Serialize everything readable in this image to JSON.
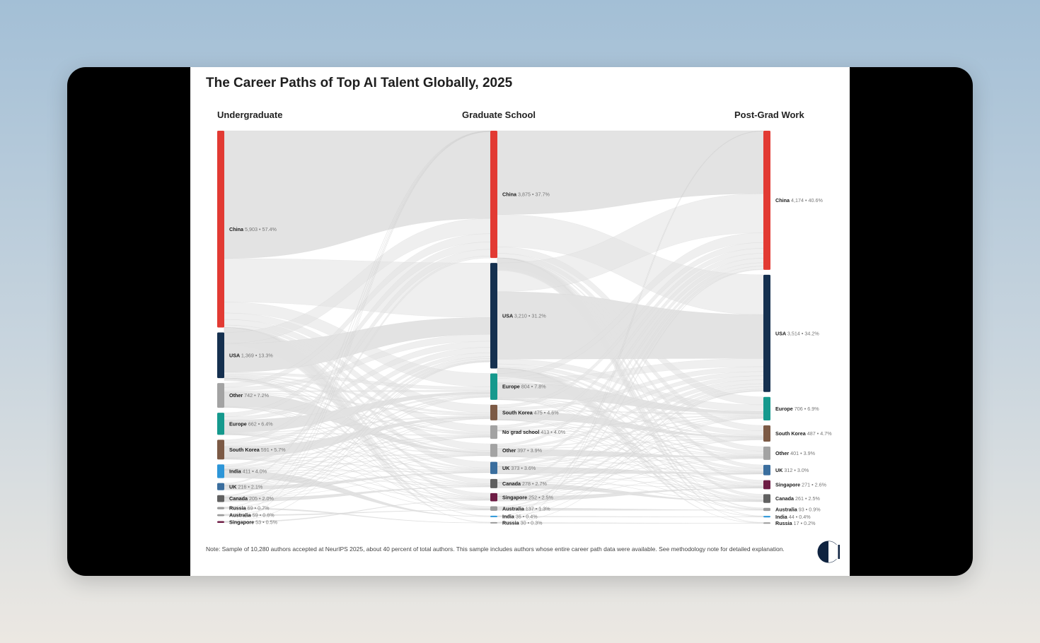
{
  "title": "The Career Paths of Top AI Talent Globally, 2025",
  "columns": [
    "Undergraduate",
    "Graduate School",
    "Post-Grad Work"
  ],
  "note": "Note: Sample of 10,280 authors accepted at NeurIPS 2025, about 40 percent of total authors. This sample includes authors whose entire career path data were available. See methodology note for detailed explanation.",
  "logo_icon": "organization-logo-icon",
  "colors": {
    "China": "#e23a33",
    "USA": "#15304f",
    "Other": "#a3a3a3",
    "Europe": "#15998d",
    "South Korea": "#7c5a45",
    "India": "#2d96d8",
    "UK": "#3a6e9e",
    "Canada": "#606060",
    "Russia": "#9a9a9a",
    "Australia": "#9a9a9a",
    "Singapore": "#6e1d45",
    "No grad school": "#a3a3a3",
    "flow": "#e2e2e2"
  },
  "chart_data": {
    "type": "sankey",
    "title": "The Career Paths of Top AI Talent Globally, 2025",
    "stages": [
      {
        "name": "Undergraduate",
        "nodes": [
          {
            "label": "China",
            "value": "5,903",
            "pct": "57.4%",
            "n": 5903
          },
          {
            "label": "USA",
            "value": "1,369",
            "pct": "13.3%",
            "n": 1369
          },
          {
            "label": "Other",
            "value": "742",
            "pct": "7.2%",
            "n": 742
          },
          {
            "label": "Europe",
            "value": "662",
            "pct": "6.4%",
            "n": 662
          },
          {
            "label": "South Korea",
            "value": "591",
            "pct": "5.7%",
            "n": 591
          },
          {
            "label": "India",
            "value": "411",
            "pct": "4.0%",
            "n": 411
          },
          {
            "label": "UK",
            "value": "216",
            "pct": "2.1%",
            "n": 216
          },
          {
            "label": "Canada",
            "value": "205",
            "pct": "2.0%",
            "n": 205
          },
          {
            "label": "Russia",
            "value": "69",
            "pct": "0.7%",
            "n": 69
          },
          {
            "label": "Australia",
            "value": "59",
            "pct": "0.6%",
            "n": 59
          },
          {
            "label": "Singapore",
            "value": "53",
            "pct": "0.5%",
            "n": 53
          }
        ]
      },
      {
        "name": "Graduate School",
        "nodes": [
          {
            "label": "China",
            "value": "3,875",
            "pct": "37.7%",
            "n": 3875
          },
          {
            "label": "USA",
            "value": "3,210",
            "pct": "31.2%",
            "n": 3210
          },
          {
            "label": "Europe",
            "value": "804",
            "pct": "7.8%",
            "n": 804
          },
          {
            "label": "South Korea",
            "value": "475",
            "pct": "4.6%",
            "n": 475
          },
          {
            "label": "No grad school",
            "value": "413",
            "pct": "4.0%",
            "n": 413
          },
          {
            "label": "Other",
            "value": "397",
            "pct": "3.9%",
            "n": 397
          },
          {
            "label": "UK",
            "value": "373",
            "pct": "3.6%",
            "n": 373
          },
          {
            "label": "Canada",
            "value": "278",
            "pct": "2.7%",
            "n": 278
          },
          {
            "label": "Singapore",
            "value": "252",
            "pct": "2.5%",
            "n": 252
          },
          {
            "label": "Australia",
            "value": "137",
            "pct": "1.3%",
            "n": 137
          },
          {
            "label": "India",
            "value": "36",
            "pct": "0.4%",
            "n": 36
          },
          {
            "label": "Russia",
            "value": "30",
            "pct": "0.3%",
            "n": 30
          }
        ]
      },
      {
        "name": "Post-Grad Work",
        "nodes": [
          {
            "label": "China",
            "value": "4,174",
            "pct": "40.6%",
            "n": 4174
          },
          {
            "label": "USA",
            "value": "3,514",
            "pct": "34.2%",
            "n": 3514
          },
          {
            "label": "Europe",
            "value": "706",
            "pct": "6.9%",
            "n": 706
          },
          {
            "label": "South Korea",
            "value": "487",
            "pct": "4.7%",
            "n": 487
          },
          {
            "label": "Other",
            "value": "401",
            "pct": "3.9%",
            "n": 401
          },
          {
            "label": "UK",
            "value": "312",
            "pct": "3.0%",
            "n": 312
          },
          {
            "label": "Singapore",
            "value": "271",
            "pct": "2.6%",
            "n": 271
          },
          {
            "label": "Canada",
            "value": "261",
            "pct": "2.5%",
            "n": 261
          },
          {
            "label": "Australia",
            "value": "93",
            "pct": "0.9%",
            "n": 93
          },
          {
            "label": "India",
            "value": "44",
            "pct": "0.4%",
            "n": 44
          },
          {
            "label": "Russia",
            "value": "17",
            "pct": "0.2%",
            "n": 17
          }
        ]
      }
    ]
  }
}
